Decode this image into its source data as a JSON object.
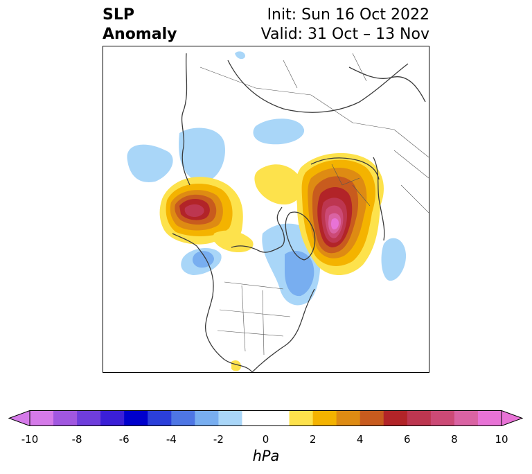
{
  "header": {
    "variable_line1": "SLP",
    "variable_line2": "Anomaly",
    "init_text": "Init: Sun 16 Oct 2022",
    "valid_text": "Valid: 31 Oct – 13 Nov"
  },
  "map": {
    "projection": "polar-stereographic",
    "region": "Northern Hemisphere",
    "features": [
      "coastlines",
      "country-borders",
      "us-state-borders",
      "canada-province-borders"
    ],
    "anomaly_centers": [
      {
        "name": "positive-anomaly-north-pacific",
        "sign": "positive",
        "peak_hpa": 6
      },
      {
        "name": "positive-anomaly-eurasia-arctic",
        "sign": "positive",
        "peak_hpa": 10
      },
      {
        "name": "positive-anomaly-arctic-canada",
        "sign": "positive",
        "peak_hpa": 2
      },
      {
        "name": "negative-anomaly-north-atlantic",
        "sign": "negative",
        "peak_hpa": -3
      },
      {
        "name": "negative-anomaly-west-canada",
        "sign": "negative",
        "peak_hpa": -3
      },
      {
        "name": "negative-anomaly-central-pacific",
        "sign": "negative",
        "peak_hpa": -1
      }
    ]
  },
  "colorbar": {
    "units": "hPa",
    "range": [
      -10,
      10
    ],
    "extend": "both",
    "levels": [
      -10,
      -9,
      -8,
      -7,
      -6,
      -5,
      -4,
      -3,
      -2,
      -1,
      1,
      2,
      3,
      4,
      5,
      6,
      7,
      8,
      9,
      10
    ],
    "colors": [
      "#d57ae9",
      "#a157e0",
      "#6f3ddc",
      "#3b1fd7",
      "#0000cd",
      "#2b3fda",
      "#4e76e4",
      "#78aef0",
      "#a9d6f8",
      "#ffffff",
      "#fde24c",
      "#f4b300",
      "#de8b13",
      "#c85b1e",
      "#b22428",
      "#bd3650",
      "#cc4a76",
      "#da63a3",
      "#e873d6"
    ],
    "low_extend_color": "#d57ae9",
    "high_extend_color": "#e873d6",
    "tick_labels": [
      "-10",
      "-8",
      "-6",
      "-4",
      "-2",
      "0",
      "2",
      "4",
      "6",
      "8",
      "10"
    ]
  }
}
